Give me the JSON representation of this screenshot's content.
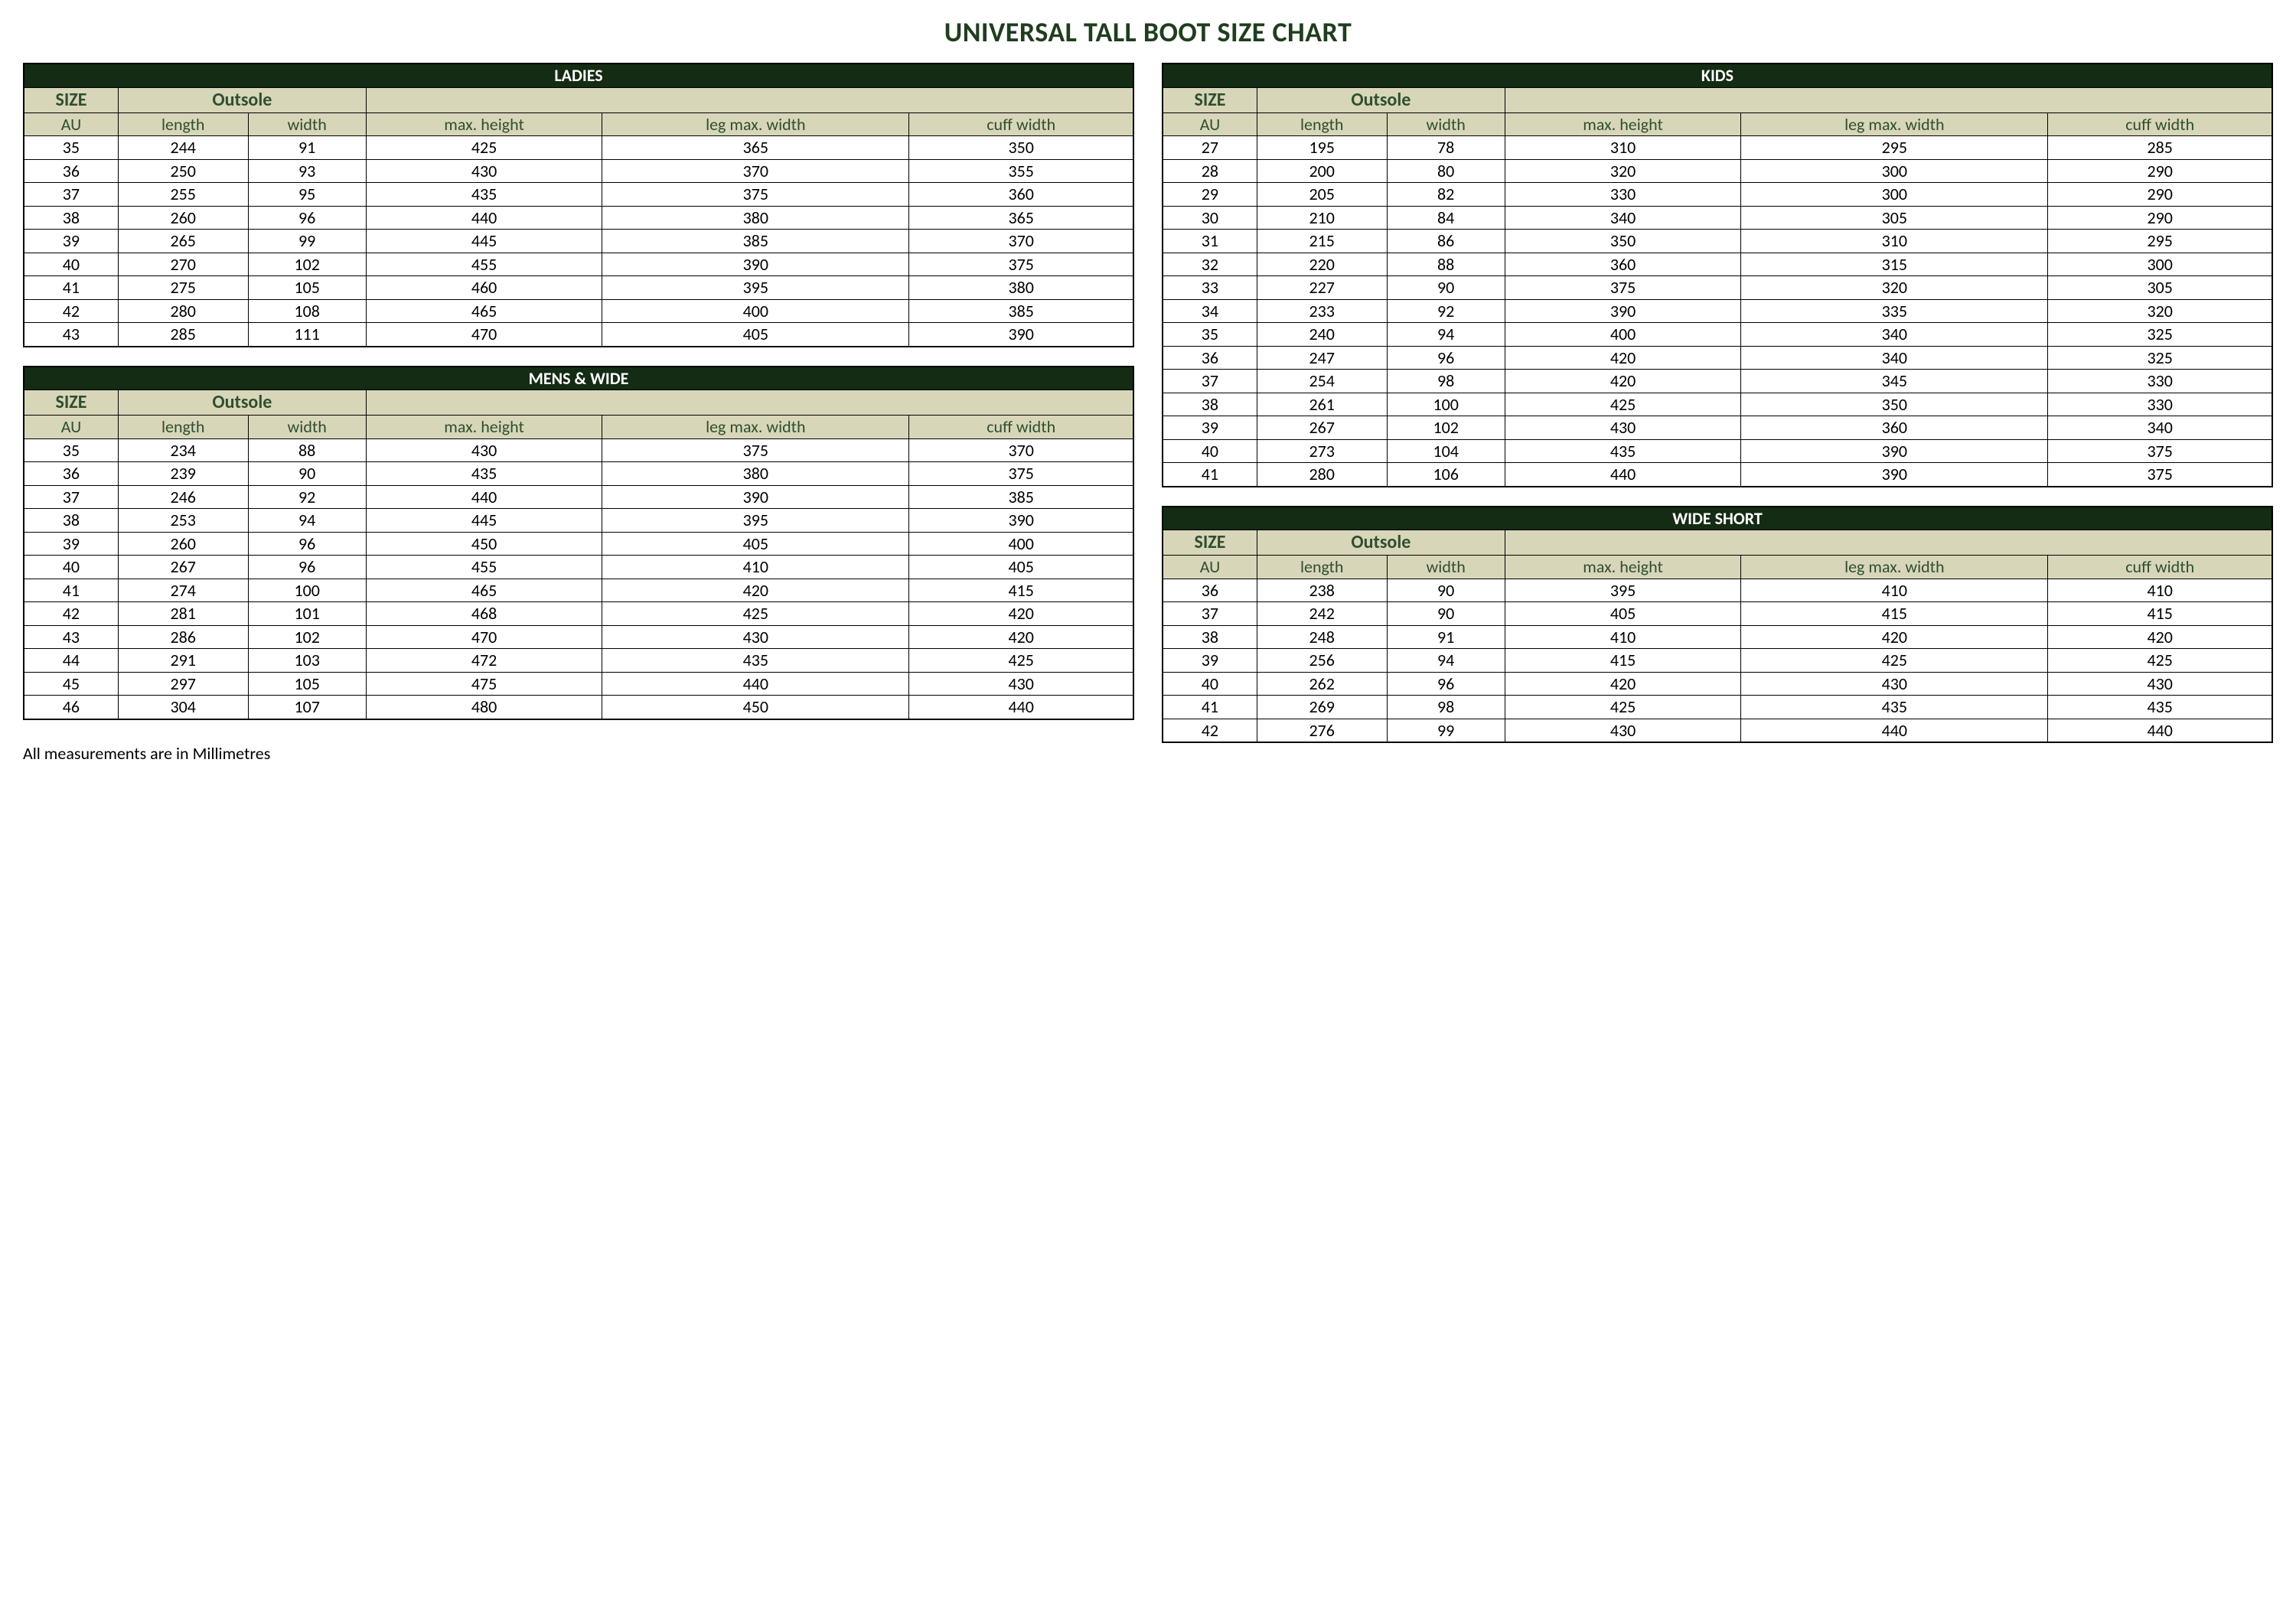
{
  "page_title": "UNIVERSAL TALL BOOT SIZE CHART",
  "footnote": "All measurements are in Millimetres",
  "colors": {
    "title_text": "#1f3d1f",
    "table_title_bg": "#142b14",
    "table_title_text": "#ffffff",
    "header_bg": "#d8d6b9",
    "header_text": "#2f4f2f",
    "border": "#000000",
    "background": "#ffffff"
  },
  "columns_group": {
    "size_label": "SIZE",
    "outsole_label": "Outsole",
    "au": "AU",
    "length": "length",
    "width": "width",
    "max_height": "max. height",
    "leg_max_width": "leg max. width",
    "cuff_width": "cuff width"
  },
  "tables": {
    "ladies": {
      "title": "LADIES",
      "rows": [
        [
          35,
          244,
          91,
          425,
          365,
          350
        ],
        [
          36,
          250,
          93,
          430,
          370,
          355
        ],
        [
          37,
          255,
          95,
          435,
          375,
          360
        ],
        [
          38,
          260,
          96,
          440,
          380,
          365
        ],
        [
          39,
          265,
          99,
          445,
          385,
          370
        ],
        [
          40,
          270,
          102,
          455,
          390,
          375
        ],
        [
          41,
          275,
          105,
          460,
          395,
          380
        ],
        [
          42,
          280,
          108,
          465,
          400,
          385
        ],
        [
          43,
          285,
          111,
          470,
          405,
          390
        ]
      ]
    },
    "mens_wide": {
      "title": "MENS & WIDE",
      "rows": [
        [
          35,
          234,
          88,
          430,
          375,
          370
        ],
        [
          36,
          239,
          90,
          435,
          380,
          375
        ],
        [
          37,
          246,
          92,
          440,
          390,
          385
        ],
        [
          38,
          253,
          94,
          445,
          395,
          390
        ],
        [
          39,
          260,
          96,
          450,
          405,
          400
        ],
        [
          40,
          267,
          96,
          455,
          410,
          405
        ],
        [
          41,
          274,
          100,
          465,
          420,
          415
        ],
        [
          42,
          281,
          101,
          468,
          425,
          420
        ],
        [
          43,
          286,
          102,
          470,
          430,
          420
        ],
        [
          44,
          291,
          103,
          472,
          435,
          425
        ],
        [
          45,
          297,
          105,
          475,
          440,
          430
        ],
        [
          46,
          304,
          107,
          480,
          450,
          440
        ]
      ]
    },
    "kids": {
      "title": "KIDS",
      "rows": [
        [
          27,
          195,
          78,
          310,
          295,
          285
        ],
        [
          28,
          200,
          80,
          320,
          300,
          290
        ],
        [
          29,
          205,
          82,
          330,
          300,
          290
        ],
        [
          30,
          210,
          84,
          340,
          305,
          290
        ],
        [
          31,
          215,
          86,
          350,
          310,
          295
        ],
        [
          32,
          220,
          88,
          360,
          315,
          300
        ],
        [
          33,
          227,
          90,
          375,
          320,
          305
        ],
        [
          34,
          233,
          92,
          390,
          335,
          320
        ],
        [
          35,
          240,
          94,
          400,
          340,
          325
        ],
        [
          36,
          247,
          96,
          420,
          340,
          325
        ],
        [
          37,
          254,
          98,
          420,
          345,
          330
        ],
        [
          38,
          261,
          100,
          425,
          350,
          330
        ],
        [
          39,
          267,
          102,
          430,
          360,
          340
        ],
        [
          40,
          273,
          104,
          435,
          390,
          375
        ],
        [
          41,
          280,
          106,
          440,
          390,
          375
        ]
      ]
    },
    "wide_short": {
      "title": "WIDE SHORT",
      "rows": [
        [
          36,
          238,
          90,
          395,
          410,
          410
        ],
        [
          37,
          242,
          90,
          405,
          415,
          415
        ],
        [
          38,
          248,
          91,
          410,
          420,
          420
        ],
        [
          39,
          256,
          94,
          415,
          425,
          425
        ],
        [
          40,
          262,
          96,
          420,
          430,
          430
        ],
        [
          41,
          269,
          98,
          425,
          435,
          435
        ],
        [
          42,
          276,
          99,
          430,
          440,
          440
        ]
      ]
    }
  }
}
